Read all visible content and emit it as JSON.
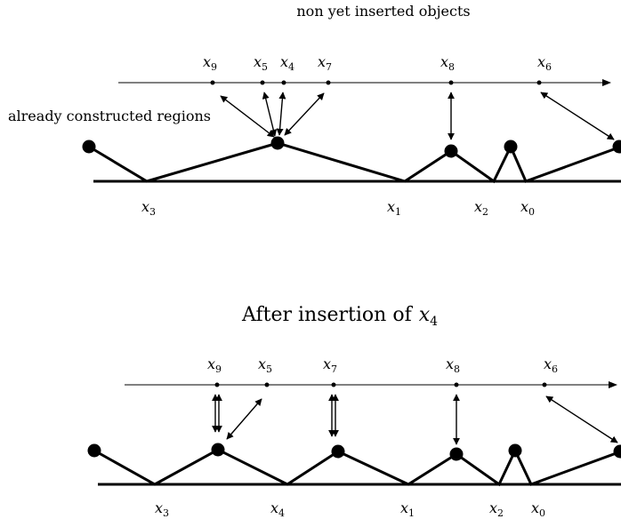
{
  "top_panel": {
    "heading": "non yet inserted objects",
    "side_label": "already constructed regions",
    "line_labels": [
      "9",
      "5",
      "4",
      "7",
      "8",
      "6"
    ],
    "base_labels": [
      "3",
      "1",
      "2",
      "0"
    ]
  },
  "bottom_panel": {
    "title_prefix": "After insertion of",
    "title_var_sub": "4",
    "line_labels": [
      "9",
      "5",
      "7",
      "8",
      "6"
    ],
    "base_labels": [
      "3",
      "4",
      "1",
      "2",
      "0"
    ]
  },
  "variable_letter": "x"
}
